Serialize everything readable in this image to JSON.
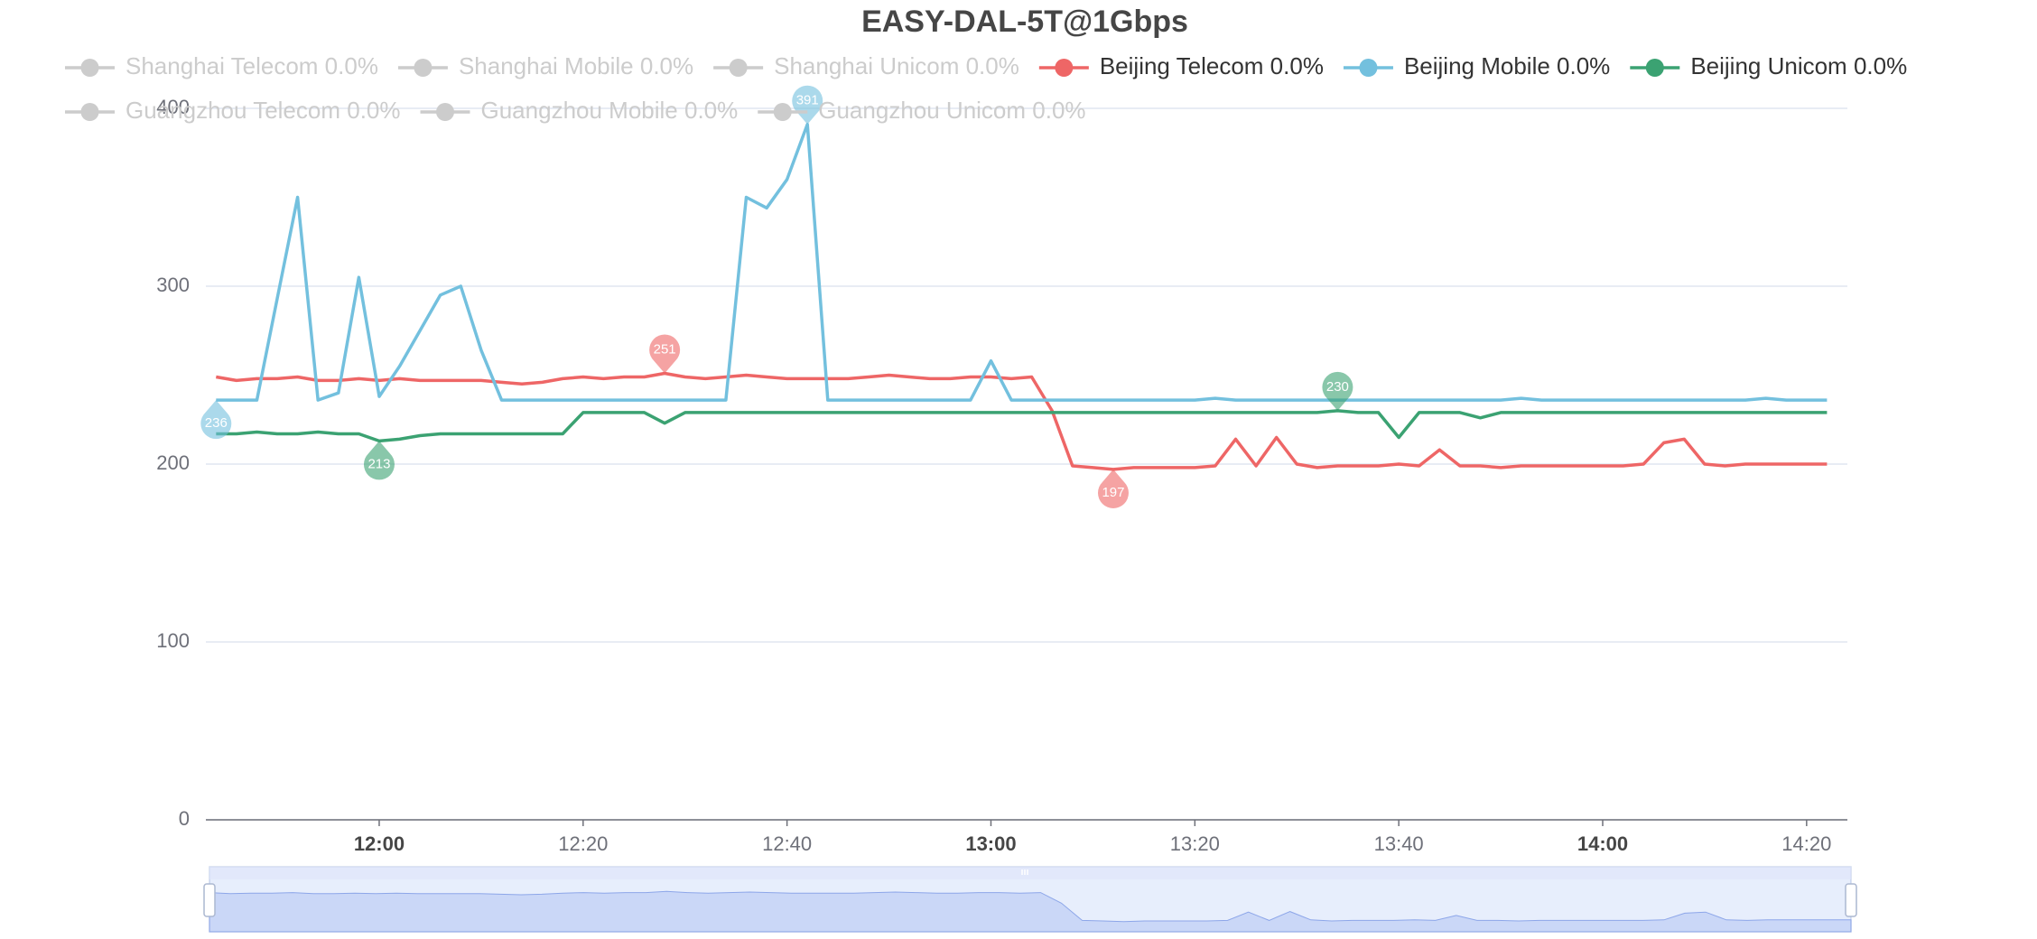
{
  "chart_data": {
    "type": "line",
    "title": "EASY-DAL-5T@1Gbps",
    "x": [
      "11:44",
      "11:46",
      "11:48",
      "11:50",
      "11:52",
      "11:54",
      "11:56",
      "11:58",
      "12:00",
      "12:02",
      "12:04",
      "12:06",
      "12:08",
      "12:10",
      "12:12",
      "12:14",
      "12:16",
      "12:18",
      "12:20",
      "12:22",
      "12:24",
      "12:26",
      "12:28",
      "12:30",
      "12:32",
      "12:34",
      "12:36",
      "12:38",
      "12:40",
      "12:42",
      "12:44",
      "12:46",
      "12:48",
      "12:50",
      "12:52",
      "12:54",
      "12:56",
      "12:58",
      "13:00",
      "13:02",
      "13:04",
      "13:06",
      "13:08",
      "13:10",
      "13:12",
      "13:14",
      "13:16",
      "13:18",
      "13:20",
      "13:22",
      "13:24",
      "13:26",
      "13:28",
      "13:30",
      "13:32",
      "13:34",
      "13:36",
      "13:38",
      "13:40",
      "13:42",
      "13:44",
      "13:46",
      "13:48",
      "13:50",
      "13:52",
      "13:54",
      "13:56",
      "13:58",
      "14:00",
      "14:02",
      "14:04",
      "14:06",
      "14:08",
      "14:10",
      "14:12",
      "14:14",
      "14:16",
      "14:18",
      "14:20",
      "14:22"
    ],
    "series": [
      {
        "name": "Shanghai Telecom 0.0%",
        "selected": false
      },
      {
        "name": "Shanghai Mobile 0.0%",
        "selected": false
      },
      {
        "name": "Shanghai Unicom 0.0%",
        "selected": false
      },
      {
        "name": "Beijing Telecom 0.0%",
        "color": "#ee6666",
        "selected": true,
        "values": [
          249,
          247,
          248,
          248,
          249,
          247,
          247,
          248,
          247,
          248,
          247,
          247,
          247,
          247,
          246,
          245,
          246,
          248,
          249,
          248,
          249,
          249,
          251,
          249,
          248,
          249,
          250,
          249,
          248,
          248,
          248,
          248,
          249,
          250,
          249,
          248,
          248,
          249,
          249,
          248,
          249,
          230,
          199,
          198,
          197,
          198,
          198,
          198,
          198,
          199,
          214,
          199,
          215,
          200,
          198,
          199,
          199,
          199,
          200,
          199,
          208,
          199,
          199,
          198,
          199,
          199,
          199,
          199,
          199,
          199,
          200,
          212,
          214,
          200,
          199,
          200,
          200,
          200,
          200,
          200
        ]
      },
      {
        "name": "Beijing Mobile 0.0%",
        "color": "#73c0de",
        "selected": true,
        "values": [
          236,
          236,
          236,
          293,
          350,
          236,
          240,
          305,
          238,
          255,
          275,
          295,
          300,
          264,
          236,
          236,
          236,
          236,
          236,
          236,
          236,
          236,
          236,
          236,
          236,
          236,
          350,
          344,
          360,
          391,
          236,
          236,
          236,
          236,
          236,
          236,
          236,
          236,
          258,
          236,
          236,
          236,
          236,
          236,
          236,
          236,
          236,
          236,
          236,
          237,
          236,
          236,
          236,
          236,
          236,
          236,
          236,
          236,
          236,
          236,
          236,
          236,
          236,
          236,
          237,
          236,
          236,
          236,
          236,
          236,
          236,
          236,
          236,
          236,
          236,
          236,
          237,
          236,
          236,
          236
        ]
      },
      {
        "name": "Beijing Unicom 0.0%",
        "color": "#3ba272",
        "selected": true,
        "values": [
          217,
          217,
          218,
          217,
          217,
          218,
          217,
          217,
          213,
          214,
          216,
          217,
          217,
          217,
          217,
          217,
          217,
          217,
          229,
          229,
          229,
          229,
          223,
          229,
          229,
          229,
          229,
          229,
          229,
          229,
          229,
          229,
          229,
          229,
          229,
          229,
          229,
          229,
          229,
          229,
          229,
          229,
          229,
          229,
          229,
          229,
          229,
          229,
          229,
          229,
          229,
          229,
          229,
          229,
          229,
          230,
          229,
          229,
          215,
          229,
          229,
          229,
          226,
          229,
          229,
          229,
          229,
          229,
          229,
          229,
          229,
          229,
          229,
          229,
          229,
          229,
          229,
          229,
          229,
          229
        ]
      },
      {
        "name": "Guangzhou Telecom 0.0%",
        "selected": false
      },
      {
        "name": "Guangzhou Mobile 0.0%",
        "selected": false
      },
      {
        "name": "Guangzhou Unicom 0.0%",
        "selected": false
      }
    ],
    "xlim": [
      "11:43",
      "14:24"
    ],
    "xticks": [
      "12:00",
      "12:20",
      "12:40",
      "13:00",
      "13:20",
      "13:40",
      "14:00",
      "14:20"
    ],
    "ylim": [
      0,
      400
    ],
    "yticks": [
      0,
      100,
      200,
      300,
      400
    ],
    "grid": true,
    "legend": "top-left",
    "mark_points": [
      "max",
      "min"
    ],
    "data_zoom": true
  }
}
